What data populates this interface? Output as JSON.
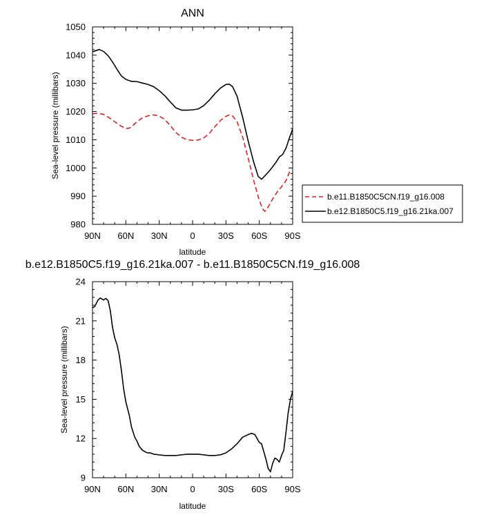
{
  "chart_data": [
    {
      "type": "line",
      "title": "ANN",
      "xlabel": "latitude",
      "ylabel": "Sea-level pressure (millibars)",
      "x_tick_labels": [
        "90N",
        "60N",
        "30N",
        "0",
        "30S",
        "60S",
        "90S"
      ],
      "x_ticks": [
        -90,
        -60,
        -30,
        0,
        30,
        60,
        90
      ],
      "xlim": [
        -90,
        90
      ],
      "ylim": [
        980,
        1050
      ],
      "y_ticks": [
        980,
        990,
        1000,
        1010,
        1020,
        1030,
        1040,
        1050
      ],
      "legend_placement": "right",
      "series": [
        {
          "name": "b.e11.B1850C5CN.f19_g16.008",
          "color": "#e02020",
          "dash": "dashed",
          "points": [
            [
              -90,
              1019.2
            ],
            [
              -85,
              1019.4
            ],
            [
              -80,
              1019.0
            ],
            [
              -75,
              1017.8
            ],
            [
              -70,
              1016.4
            ],
            [
              -65,
              1015.0
            ],
            [
              -60,
              1014.0
            ],
            [
              -57,
              1014.1
            ],
            [
              -54,
              1014.9
            ],
            [
              -50,
              1016.4
            ],
            [
              -45,
              1017.8
            ],
            [
              -40,
              1018.5
            ],
            [
              -35,
              1018.8
            ],
            [
              -30,
              1018.4
            ],
            [
              -25,
              1017.2
            ],
            [
              -20,
              1015.0
            ],
            [
              -15,
              1012.6
            ],
            [
              -10,
              1010.9
            ],
            [
              -5,
              1010.0
            ],
            [
              0,
              1009.8
            ],
            [
              5,
              1009.9
            ],
            [
              10,
              1010.6
            ],
            [
              15,
              1012.2
            ],
            [
              20,
              1014.6
            ],
            [
              25,
              1016.8
            ],
            [
              30,
              1018.3
            ],
            [
              33,
              1018.8
            ],
            [
              36,
              1018.4
            ],
            [
              40,
              1016.4
            ],
            [
              45,
              1011.0
            ],
            [
              50,
              1003.5
            ],
            [
              55,
              995.5
            ],
            [
              60,
              988.5
            ],
            [
              63,
              985.5
            ],
            [
              65,
              984.6
            ],
            [
              68,
              986.2
            ],
            [
              72,
              989.0
            ],
            [
              77,
              992.0
            ],
            [
              80,
              993.3
            ],
            [
              84,
              995.5
            ],
            [
              87,
              998.4
            ],
            [
              90,
              999.0
            ]
          ]
        },
        {
          "name": "b.e12.B1850C5.f19_g16.21ka.007",
          "color": "#000000",
          "dash": "solid",
          "points": [
            [
              -90,
              1041.2
            ],
            [
              -87,
              1041.6
            ],
            [
              -84,
              1042.0
            ],
            [
              -80,
              1041.3
            ],
            [
              -76,
              1039.8
            ],
            [
              -72,
              1037.6
            ],
            [
              -68,
              1035.0
            ],
            [
              -64,
              1032.6
            ],
            [
              -60,
              1031.4
            ],
            [
              -55,
              1030.7
            ],
            [
              -50,
              1030.6
            ],
            [
              -45,
              1030.1
            ],
            [
              -40,
              1029.6
            ],
            [
              -35,
              1028.8
            ],
            [
              -30,
              1027.4
            ],
            [
              -25,
              1025.6
            ],
            [
              -20,
              1023.4
            ],
            [
              -15,
              1021.3
            ],
            [
              -10,
              1020.5
            ],
            [
              -5,
              1020.5
            ],
            [
              0,
              1020.6
            ],
            [
              5,
              1020.9
            ],
            [
              10,
              1022.1
            ],
            [
              15,
              1024.0
            ],
            [
              20,
              1026.3
            ],
            [
              25,
              1028.3
            ],
            [
              30,
              1029.6
            ],
            [
              33,
              1029.7
            ],
            [
              36,
              1028.8
            ],
            [
              40,
              1025.4
            ],
            [
              45,
              1018.0
            ],
            [
              50,
              1009.5
            ],
            [
              55,
              1002.0
            ],
            [
              59,
              997.0
            ],
            [
              62,
              996.0
            ],
            [
              65,
              997.2
            ],
            [
              70,
              999.4
            ],
            [
              75,
              1002.0
            ],
            [
              78,
              1003.9
            ],
            [
              81,
              1004.8
            ],
            [
              84,
              1007.0
            ],
            [
              87,
              1010.6
            ],
            [
              90,
              1013.8
            ]
          ]
        }
      ]
    },
    {
      "type": "line",
      "title": "b.e12.B1850C5.f19_g16.21ka.007 - b.e11.B1850C5CN.f19_g16.008",
      "xlabel": "latitude",
      "ylabel": "Sea-level pressure (millibars)",
      "x_tick_labels": [
        "90N",
        "60N",
        "30N",
        "0",
        "30S",
        "60S",
        "90S"
      ],
      "x_ticks": [
        -90,
        -60,
        -30,
        0,
        30,
        60,
        90
      ],
      "xlim": [
        -90,
        90
      ],
      "ylim": [
        9,
        24
      ],
      "y_ticks": [
        9,
        12,
        15,
        18,
        21,
        24
      ],
      "series": [
        {
          "color": "#000000",
          "dash": "solid",
          "points": [
            [
              -90,
              22.0
            ],
            [
              -88,
              22.1
            ],
            [
              -85,
              22.6
            ],
            [
              -83,
              22.75
            ],
            [
              -80,
              22.6
            ],
            [
              -78,
              22.72
            ],
            [
              -76,
              22.55
            ],
            [
              -74,
              21.8
            ],
            [
              -72,
              20.5
            ],
            [
              -70,
              19.7
            ],
            [
              -68,
              19.2
            ],
            [
              -66,
              18.4
            ],
            [
              -64,
              17.2
            ],
            [
              -62,
              15.8
            ],
            [
              -60,
              14.8
            ],
            [
              -57,
              13.8
            ],
            [
              -55,
              12.9
            ],
            [
              -52,
              12.1
            ],
            [
              -50,
              11.8
            ],
            [
              -48,
              11.4
            ],
            [
              -45,
              11.1
            ],
            [
              -42,
              10.95
            ],
            [
              -40,
              10.9
            ],
            [
              -38,
              10.9
            ],
            [
              -35,
              10.8
            ],
            [
              -30,
              10.75
            ],
            [
              -25,
              10.7
            ],
            [
              -20,
              10.7
            ],
            [
              -15,
              10.7
            ],
            [
              -10,
              10.75
            ],
            [
              -5,
              10.8
            ],
            [
              0,
              10.8
            ],
            [
              5,
              10.8
            ],
            [
              10,
              10.75
            ],
            [
              15,
              10.7
            ],
            [
              20,
              10.7
            ],
            [
              25,
              10.75
            ],
            [
              30,
              10.9
            ],
            [
              35,
              11.2
            ],
            [
              40,
              11.6
            ],
            [
              45,
              12.1
            ],
            [
              50,
              12.3
            ],
            [
              53,
              12.4
            ],
            [
              56,
              12.3
            ],
            [
              58,
              12.0
            ],
            [
              60,
              11.7
            ],
            [
              62,
              11.6
            ],
            [
              64,
              11.0
            ],
            [
              66,
              10.4
            ],
            [
              68,
              9.7
            ],
            [
              70,
              9.45
            ],
            [
              72,
              10.1
            ],
            [
              74,
              10.5
            ],
            [
              76,
              10.4
            ],
            [
              78,
              10.2
            ],
            [
              80,
              10.7
            ],
            [
              82,
              11.1
            ],
            [
              84,
              12.5
            ],
            [
              86,
              14.0
            ],
            [
              88,
              15.0
            ],
            [
              90,
              15.6
            ]
          ]
        }
      ]
    }
  ]
}
